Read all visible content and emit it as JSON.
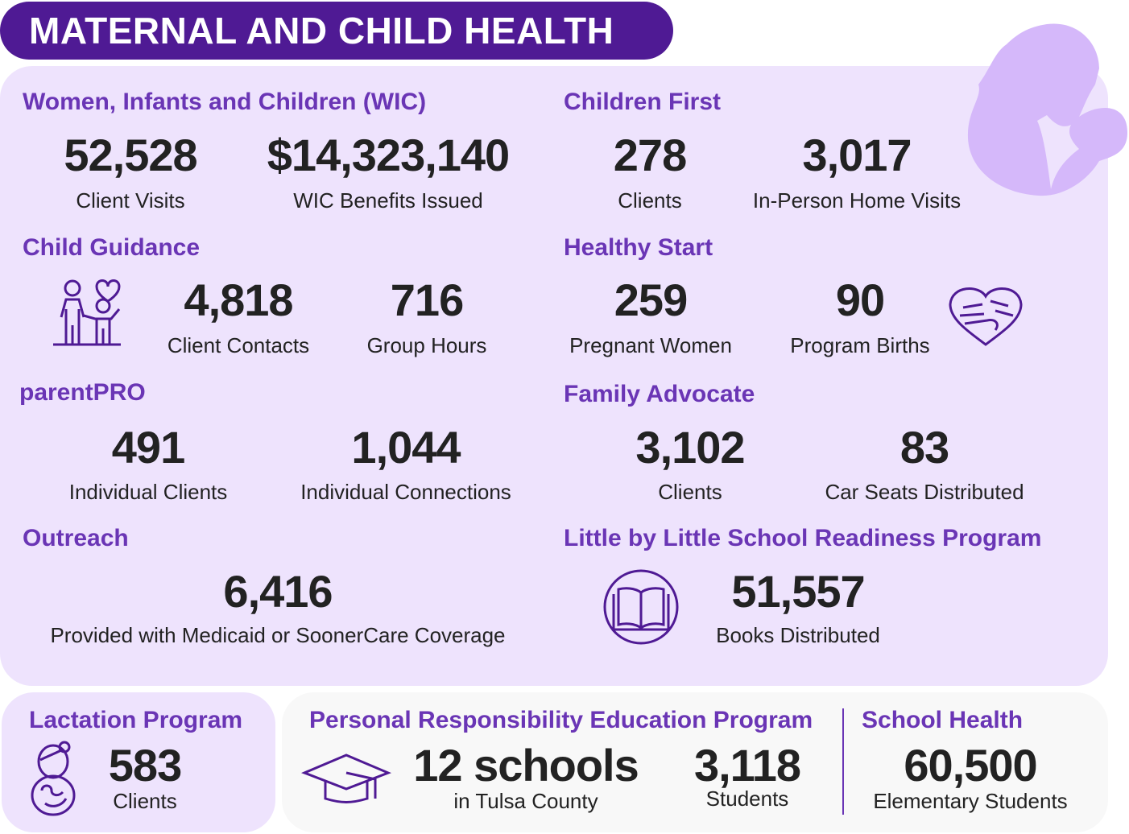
{
  "title": "MATERNAL AND CHILD HEALTH",
  "colors": {
    "banner": "#4f1a94",
    "panel": "#eee3fd",
    "heading": "#6a35b5",
    "silhouette": "#d5b8fa",
    "number": "#222222"
  },
  "sections": {
    "wic": {
      "heading": "Women, Infants and Children (WIC)",
      "stats": [
        {
          "value": "52,528",
          "label": "Client Visits"
        },
        {
          "value": "$14,323,140",
          "label": "WIC Benefits Issued"
        }
      ]
    },
    "children_first": {
      "heading": "Children First",
      "stats": [
        {
          "value": "278",
          "label": "Clients"
        },
        {
          "value": "3,017",
          "label": "In-Person Home Visits"
        }
      ]
    },
    "child_guidance": {
      "heading": "Child Guidance",
      "icon": "family-heart-icon",
      "stats": [
        {
          "value": "4,818",
          "label": "Client Contacts"
        },
        {
          "value": "716",
          "label": "Group Hours"
        }
      ]
    },
    "healthy_start": {
      "heading": "Healthy Start",
      "icon": "hands-heart-icon",
      "stats": [
        {
          "value": "259",
          "label": "Pregnant Women"
        },
        {
          "value": "90",
          "label": "Program Births"
        }
      ]
    },
    "parentpro": {
      "heading": "parentPRO",
      "stats": [
        {
          "value": "491",
          "label": "Individual Clients"
        },
        {
          "value": "1,044",
          "label": "Individual Connections"
        }
      ]
    },
    "family_advocate": {
      "heading": "Family Advocate",
      "stats": [
        {
          "value": "3,102",
          "label": "Clients"
        },
        {
          "value": "83",
          "label": "Car Seats Distributed"
        }
      ]
    },
    "outreach": {
      "heading": "Outreach",
      "stats": [
        {
          "value": "6,416",
          "label": "Provided with Medicaid or SoonerCare Coverage"
        }
      ]
    },
    "little_by_little": {
      "heading": "Little by Little School Readiness Program",
      "icon": "book-icon",
      "stats": [
        {
          "value": "51,557",
          "label": "Books Distributed"
        }
      ]
    },
    "lactation": {
      "heading": "Lactation Program",
      "icon": "mother-baby-icon",
      "stats": [
        {
          "value": "583",
          "label": "Clients"
        }
      ]
    },
    "prep": {
      "heading": "Personal Responsibility Education Program",
      "icon": "graduation-cap-icon",
      "stats": [
        {
          "value": "12 schools",
          "label": "in Tulsa County"
        },
        {
          "value": "3,118",
          "label": "Students"
        }
      ]
    },
    "school_health": {
      "heading": "School Health",
      "stats": [
        {
          "value": "60,500",
          "label": "Elementary Students"
        }
      ]
    }
  }
}
